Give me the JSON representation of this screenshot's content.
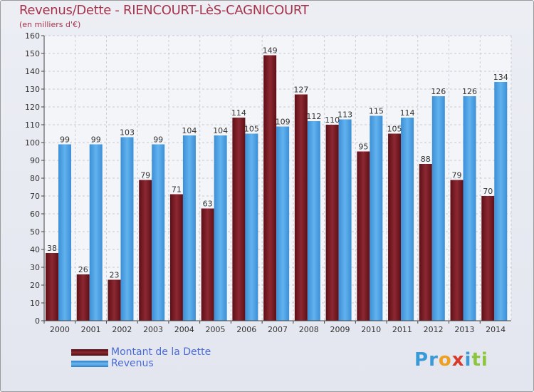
{
  "header": {
    "title": "Revenus/Dette - RIENCOURT-LèS-CAGNICOURT",
    "subtitle": "(en milliers d'€)"
  },
  "legend": [
    {
      "label": "Montant de la Dette",
      "color": "#7a1e26"
    },
    {
      "label": "Revenus",
      "color": "#4aa2e4"
    }
  ],
  "brand": {
    "text": "Proxiti"
  },
  "chart_data": {
    "type": "bar",
    "title": "Revenus/Dette - RIENCOURT-LèS-CAGNICOURT",
    "subtitle": "(en milliers d'€)",
    "xlabel": "",
    "ylabel": "",
    "ylim": [
      0,
      160
    ],
    "yticks": [
      0,
      10,
      20,
      30,
      40,
      50,
      60,
      70,
      80,
      90,
      100,
      110,
      120,
      130,
      140,
      150,
      160
    ],
    "grid": true,
    "legend_position": "bottom-left",
    "categories": [
      "2000",
      "2001",
      "2002",
      "2003",
      "2004",
      "2005",
      "2006",
      "2007",
      "2008",
      "2009",
      "2010",
      "2011",
      "2012",
      "2013",
      "2014"
    ],
    "series": [
      {
        "name": "Montant de la Dette",
        "color": "#7a1e26",
        "values": [
          38,
          26,
          23,
          79,
          71,
          63,
          114,
          149,
          127,
          110,
          95,
          105,
          88,
          79,
          70
        ]
      },
      {
        "name": "Revenus",
        "color": "#4aa2e4",
        "values": [
          99,
          99,
          103,
          99,
          104,
          104,
          105,
          109,
          112,
          113,
          115,
          114,
          126,
          126,
          134
        ]
      }
    ]
  }
}
